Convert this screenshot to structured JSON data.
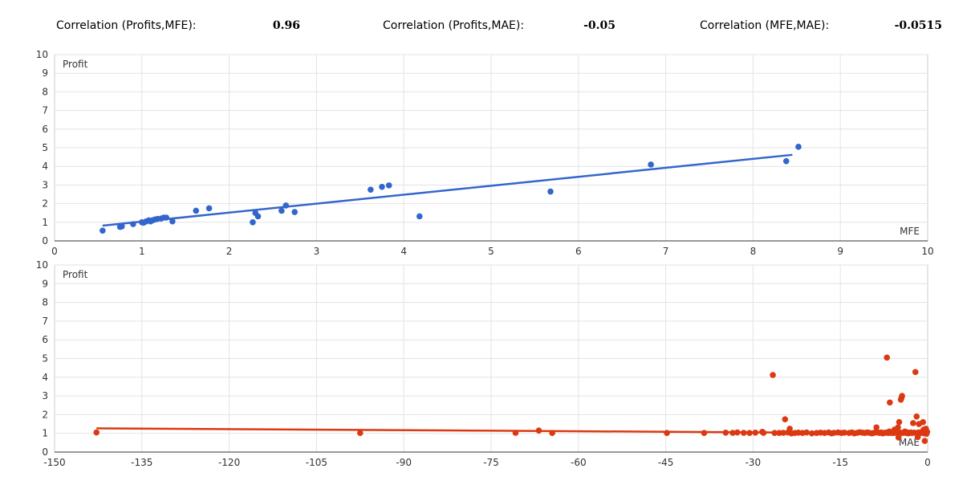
{
  "correlations": {
    "profits_mfe_label": "Correlation (Profits,MFE):",
    "profits_mfe_value": "0.96",
    "profits_mae_label": "Correlation (Profits,MAE):",
    "profits_mae_value": "-0.05",
    "mfe_mae_label": "Correlation (MFE,MAE):",
    "mfe_mae_value": "-0.0515"
  },
  "chart_data": [
    {
      "type": "scatter",
      "title": "",
      "xlabel": "MFE",
      "ylabel": "Profit",
      "xlim": [
        0,
        10
      ],
      "ylim": [
        0,
        10
      ],
      "xticks": [
        0,
        1,
        2,
        3,
        4,
        5,
        6,
        7,
        8,
        9,
        10
      ],
      "yticks": [
        0,
        1,
        2,
        3,
        4,
        5,
        6,
        7,
        8,
        9,
        10
      ],
      "grid": true,
      "color": "#3366cc",
      "points": [
        [
          0.55,
          0.55
        ],
        [
          0.75,
          0.75
        ],
        [
          0.77,
          0.78
        ],
        [
          0.9,
          0.9
        ],
        [
          1.0,
          1.0
        ],
        [
          1.02,
          0.98
        ],
        [
          1.05,
          1.05
        ],
        [
          1.08,
          1.1
        ],
        [
          1.1,
          1.05
        ],
        [
          1.12,
          1.1
        ],
        [
          1.15,
          1.15
        ],
        [
          1.18,
          1.18
        ],
        [
          1.22,
          1.2
        ],
        [
          1.25,
          1.25
        ],
        [
          1.28,
          1.25
        ],
        [
          1.35,
          1.05
        ],
        [
          1.62,
          1.62
        ],
        [
          1.77,
          1.75
        ],
        [
          2.27,
          1.0
        ],
        [
          2.3,
          1.5
        ],
        [
          2.33,
          1.32
        ],
        [
          2.6,
          1.62
        ],
        [
          2.65,
          1.9
        ],
        [
          2.75,
          1.55
        ],
        [
          3.62,
          2.75
        ],
        [
          3.75,
          2.9
        ],
        [
          3.83,
          2.98
        ],
        [
          4.18,
          1.32
        ],
        [
          5.68,
          2.65
        ],
        [
          6.83,
          4.1
        ],
        [
          8.38,
          4.28
        ],
        [
          8.52,
          5.05
        ]
      ],
      "trendline": [
        [
          0.55,
          0.82
        ],
        [
          8.45,
          4.62
        ]
      ]
    },
    {
      "type": "scatter",
      "title": "",
      "xlabel": "MAE",
      "ylabel": "Profit",
      "xlim": [
        -150,
        0
      ],
      "ylim": [
        0,
        10
      ],
      "xticks": [
        -150,
        -135,
        -120,
        -105,
        -90,
        -75,
        -60,
        -45,
        -30,
        -15,
        0
      ],
      "yticks": [
        0,
        1,
        2,
        3,
        4,
        5,
        6,
        7,
        8,
        9,
        10
      ],
      "grid": true,
      "color": "#dc3912",
      "points": [
        [
          -142.8,
          1.05
        ],
        [
          -97.5,
          1.02
        ],
        [
          -70.8,
          1.03
        ],
        [
          -66.8,
          1.15
        ],
        [
          -64.5,
          1.02
        ],
        [
          -44.8,
          1.02
        ],
        [
          -38.4,
          1.02
        ],
        [
          -34.7,
          1.04
        ],
        [
          -33.5,
          1.03
        ],
        [
          -32.7,
          1.05
        ],
        [
          -31.6,
          1.03
        ],
        [
          -30.6,
          1.02
        ],
        [
          -29.6,
          1.04
        ],
        [
          -28.4,
          1.08
        ],
        [
          -28.2,
          1.03
        ],
        [
          -26.6,
          4.12
        ],
        [
          -26.3,
          1.02
        ],
        [
          -25.5,
          1.02
        ],
        [
          -24.8,
          1.03
        ],
        [
          -24.5,
          1.75
        ],
        [
          -24.0,
          1.05
        ],
        [
          -23.7,
          1.25
        ],
        [
          -23.4,
          1.0
        ],
        [
          -22.8,
          1.02
        ],
        [
          -22.2,
          1.04
        ],
        [
          -21.5,
          1.02
        ],
        [
          -20.8,
          1.05
        ],
        [
          -19.9,
          1.0
        ],
        [
          -19.1,
          1.02
        ],
        [
          -18.4,
          1.04
        ],
        [
          -17.7,
          1.02
        ],
        [
          -17.0,
          1.05
        ],
        [
          -16.5,
          1.0
        ],
        [
          -16.1,
          1.03
        ],
        [
          -15.4,
          1.05
        ],
        [
          -14.8,
          1.02
        ],
        [
          -14.3,
          1.04
        ],
        [
          -13.5,
          1.02
        ],
        [
          -13.0,
          1.05
        ],
        [
          -12.6,
          1.0
        ],
        [
          -12.1,
          1.03
        ],
        [
          -11.7,
          1.06
        ],
        [
          -11.2,
          1.04
        ],
        [
          -10.8,
          1.02
        ],
        [
          -10.4,
          1.05
        ],
        [
          -10.0,
          1.03
        ],
        [
          -9.6,
          1.0
        ],
        [
          -9.3,
          1.02
        ],
        [
          -9.0,
          1.05
        ],
        [
          -8.8,
          1.32
        ],
        [
          -8.5,
          1.04
        ],
        [
          -8.2,
          1.02
        ],
        [
          -8.0,
          1.05
        ],
        [
          -7.7,
          1.0
        ],
        [
          -7.4,
          1.03
        ],
        [
          -7.2,
          1.04
        ],
        [
          -7.0,
          5.05
        ],
        [
          -6.8,
          1.02
        ],
        [
          -6.6,
          1.1
        ],
        [
          -6.5,
          2.65
        ],
        [
          -6.3,
          1.02
        ],
        [
          -6.1,
          1.05
        ],
        [
          -5.9,
          1.02
        ],
        [
          -5.7,
          1.2
        ],
        [
          -5.5,
          1.03
        ],
        [
          -5.3,
          1.05
        ],
        [
          -5.1,
          1.32
        ],
        [
          -5.0,
          0.78
        ],
        [
          -4.9,
          1.6
        ],
        [
          -4.8,
          1.05
        ],
        [
          -4.6,
          2.8
        ],
        [
          -4.5,
          2.9
        ],
        [
          -4.4,
          3.0
        ],
        [
          -4.3,
          1.02
        ],
        [
          -4.1,
          1.05
        ],
        [
          -3.9,
          1.1
        ],
        [
          -3.7,
          1.02
        ],
        [
          -3.5,
          1.05
        ],
        [
          -3.3,
          1.0
        ],
        [
          -3.1,
          1.03
        ],
        [
          -2.9,
          1.05
        ],
        [
          -2.7,
          1.02
        ],
        [
          -2.5,
          1.55
        ],
        [
          -2.3,
          1.04
        ],
        [
          -2.1,
          4.28
        ],
        [
          -1.9,
          1.9
        ],
        [
          -1.8,
          1.02
        ],
        [
          -1.7,
          0.8
        ],
        [
          -1.6,
          1.05
        ],
        [
          -1.5,
          1.5
        ],
        [
          -1.3,
          1.03
        ],
        [
          -1.2,
          1.02
        ],
        [
          -1.0,
          1.05
        ],
        [
          -0.9,
          1.1
        ],
        [
          -0.8,
          1.6
        ],
        [
          -0.7,
          1.2
        ],
        [
          -0.6,
          1.0
        ],
        [
          -0.5,
          0.6
        ],
        [
          -0.4,
          1.05
        ],
        [
          -0.3,
          1.25
        ],
        [
          -0.25,
          1.15
        ],
        [
          -0.2,
          0.98
        ],
        [
          -0.1,
          1.08
        ]
      ],
      "trendline": [
        [
          -142.8,
          1.27
        ],
        [
          -0.1,
          1.0
        ]
      ]
    }
  ]
}
